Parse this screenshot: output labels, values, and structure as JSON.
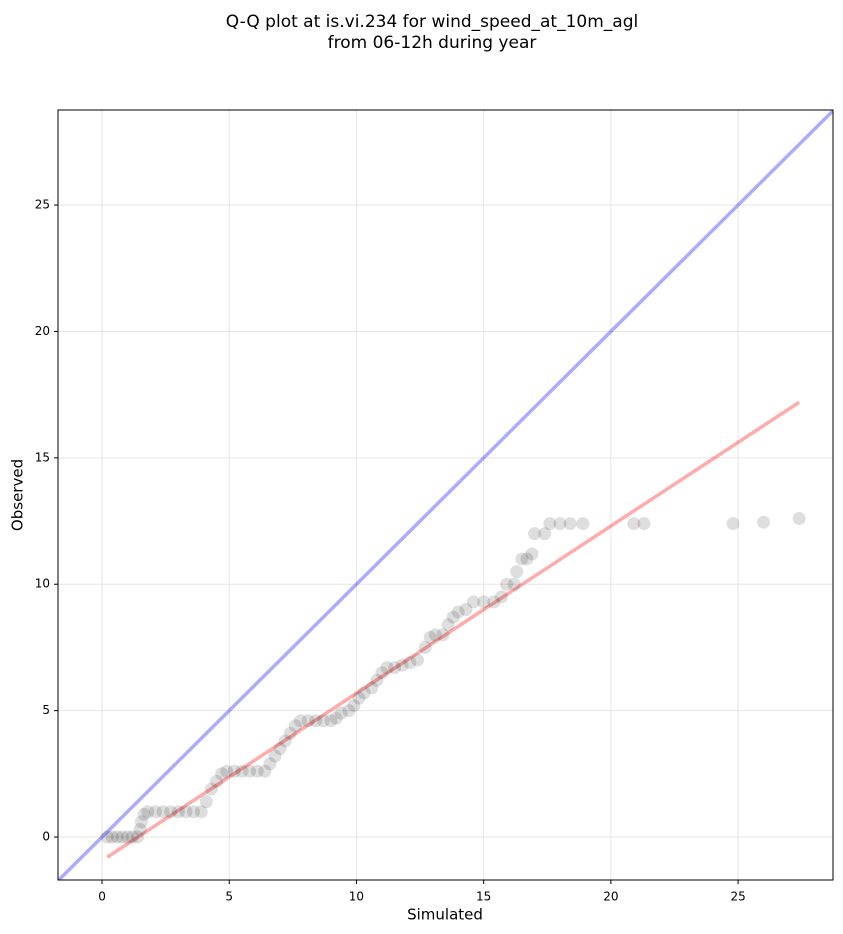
{
  "chart_data": {
    "type": "scatter",
    "title_lines": [
      "Q-Q plot at is.vi.234 for wind_speed_at_10m_agl",
      "from 06-12h during year"
    ],
    "x_label": "Simulated",
    "y_label": "Observed",
    "xlim": [
      -1.73,
      28.73
    ],
    "ylim": [
      -1.7,
      28.76
    ],
    "xticks": [
      0,
      5,
      10,
      15,
      20,
      25
    ],
    "yticks": [
      0,
      5,
      10,
      15,
      20,
      25
    ],
    "grid": true,
    "points": {
      "color": "#000000",
      "opacity": 0.13,
      "x": [
        0.2,
        0.4,
        0.6,
        0.8,
        1.0,
        1.2,
        1.4,
        1.5,
        1.55,
        1.65,
        1.8,
        2.1,
        2.4,
        2.7,
        3.0,
        3.3,
        3.6,
        3.9,
        4.1,
        4.3,
        4.5,
        4.7,
        4.9,
        5.2,
        5.5,
        5.8,
        6.1,
        6.4,
        6.6,
        6.8,
        7.0,
        7.2,
        7.4,
        7.6,
        7.8,
        8.1,
        8.4,
        8.7,
        9.0,
        9.2,
        9.4,
        9.7,
        9.9,
        10.1,
        10.3,
        10.6,
        10.8,
        11.0,
        11.2,
        11.5,
        11.8,
        12.1,
        12.4,
        12.7,
        12.9,
        13.1,
        13.4,
        13.6,
        13.8,
        14.0,
        14.3,
        14.6,
        15.0,
        15.4,
        15.7,
        15.9,
        16.2,
        16.3,
        16.5,
        16.7,
        16.9,
        17.0,
        17.4,
        17.6,
        18.0,
        18.4,
        18.9,
        20.9,
        21.3,
        24.8,
        26.0,
        27.4
      ],
      "y": [
        0,
        0,
        0,
        0,
        0,
        0,
        0,
        0.3,
        0.6,
        0.9,
        1.0,
        1.0,
        1.0,
        1.0,
        1.0,
        1.0,
        1.0,
        1.0,
        1.4,
        1.9,
        2.2,
        2.5,
        2.6,
        2.6,
        2.6,
        2.6,
        2.6,
        2.6,
        2.9,
        3.2,
        3.5,
        3.8,
        4.1,
        4.4,
        4.6,
        4.6,
        4.6,
        4.6,
        4.6,
        4.7,
        4.9,
        5.0,
        5.2,
        5.5,
        5.7,
        5.9,
        6.2,
        6.5,
        6.7,
        6.7,
        6.8,
        6.9,
        7.0,
        7.5,
        7.9,
        8.0,
        8.0,
        8.4,
        8.7,
        8.9,
        9.0,
        9.3,
        9.3,
        9.3,
        9.5,
        10.0,
        10.0,
        10.5,
        11.0,
        11.0,
        11.2,
        12.0,
        12.0,
        12.4,
        12.4,
        12.4,
        12.4,
        12.4,
        12.4,
        12.4,
        12.45,
        12.6
      ]
    },
    "lines": [
      {
        "x": [
          -1.73,
          28.73
        ],
        "y": [
          -1.73,
          28.73
        ],
        "color": "#0000ff",
        "opacity": 0.33
      },
      {
        "x": [
          0.2,
          27.4
        ],
        "y": [
          -0.8,
          17.2
        ],
        "color": "#ff0000",
        "opacity": 0.33
      }
    ]
  }
}
